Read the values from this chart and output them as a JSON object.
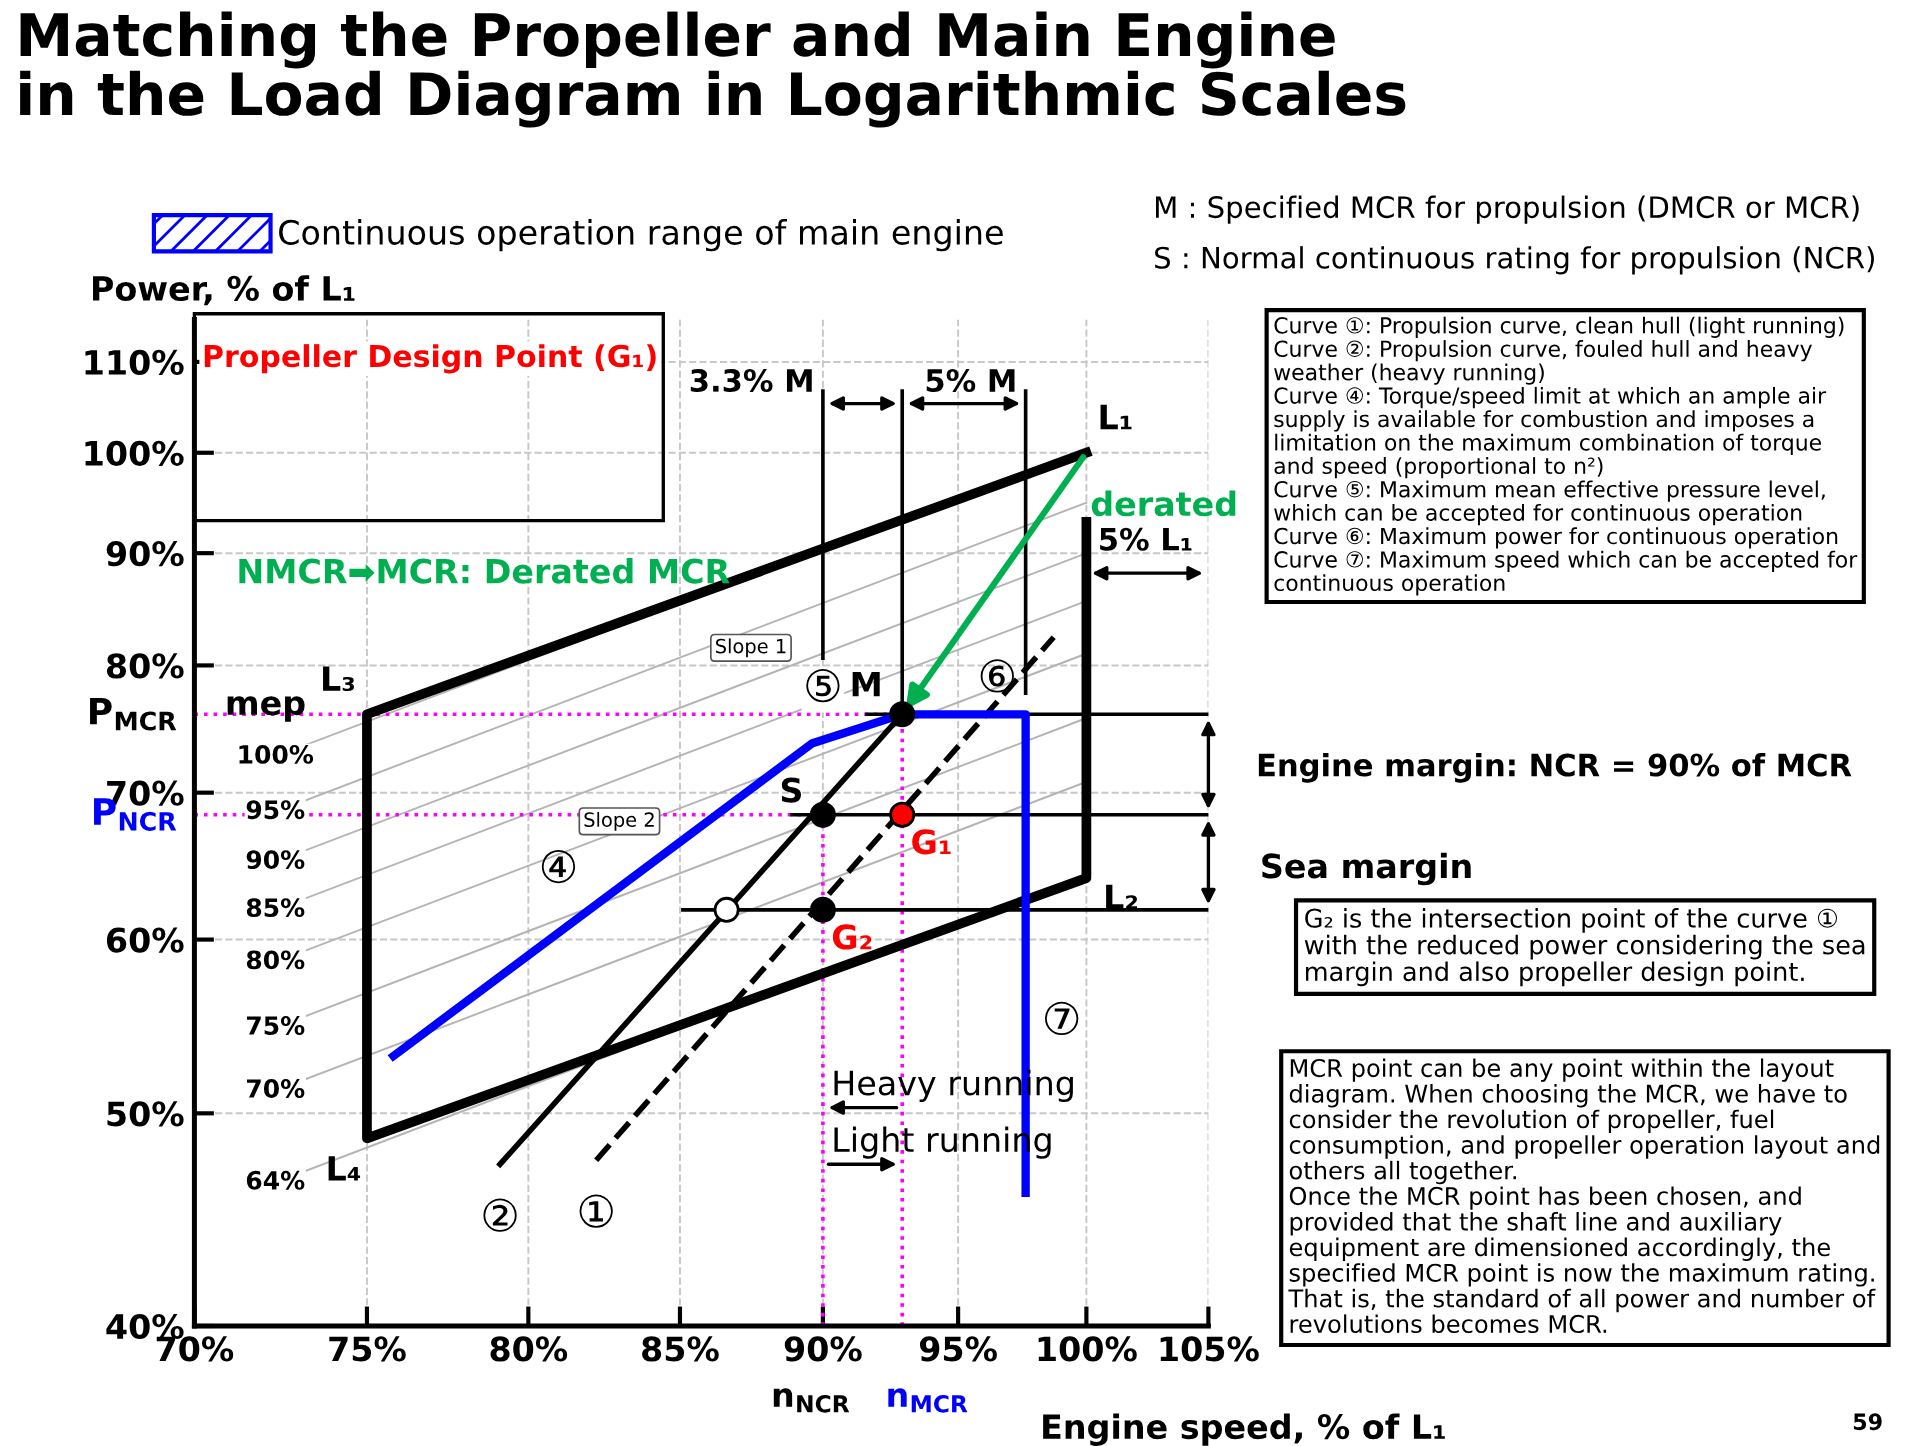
{
  "chart_data": {
    "type": "line",
    "title": "Matching the Propeller and Main Engine\nin the Load Diagram in Logarithmic Scales",
    "xlabel": "Engine speed, % of L₁",
    "ylabel": "Power, % of L₁",
    "log": "xy",
    "xlim": [
      70,
      105
    ],
    "ylim": [
      40,
      115
    ],
    "xticks": [
      {
        "value": 70,
        "label": "70%"
      },
      {
        "value": 75,
        "label": "75%"
      },
      {
        "value": 80,
        "label": "80%"
      },
      {
        "value": 85,
        "label": "85%"
      },
      {
        "value": 90,
        "label": "90%"
      },
      {
        "value": 95,
        "label": "95%"
      },
      {
        "value": 100,
        "label": "100%"
      },
      {
        "value": 105,
        "label": "105%"
      }
    ],
    "yticks": [
      {
        "value": 40,
        "label": "40%"
      },
      {
        "value": 50,
        "label": "50%"
      },
      {
        "value": 60,
        "label": "60%"
      },
      {
        "value": 70,
        "label": "70%"
      },
      {
        "value": 80,
        "label": "80%"
      },
      {
        "value": 90,
        "label": "90%"
      },
      {
        "value": 100,
        "label": "100%"
      },
      {
        "value": 110,
        "label": "110%"
      }
    ],
    "grid": true,
    "legend": "top left",
    "series": [
      {
        "type": "line",
        "color": "#000000",
        "line_style": "solid",
        "x": [
          100,
          75,
          75,
          100,
          100
        ],
        "values": [
          100,
          76,
          48.7,
          64,
          93
        ]
      },
      {
        "type": "line",
        "color": "#000000",
        "line_style": "solid",
        "x": [
          79.1,
          92.9
        ],
        "values": [
          47.4,
          76
        ]
      },
      {
        "type": "line",
        "color": "#000000",
        "line_style": "dashed",
        "x": [
          82.2,
          98.7
        ],
        "values": [
          47.6,
          82.4
        ]
      },
      {
        "type": "line",
        "name": "Continuous operation range of main engine",
        "color": "#0000ff",
        "line_style": "solid",
        "x": [
          75.8,
          89.6,
          92.9,
          97.6,
          97.6
        ],
        "values": [
          53.1,
          73.7,
          76,
          76,
          46
        ]
      },
      {
        "type": "line",
        "color": "#b4b4b4",
        "line_style": "solid",
        "x": [
          72.3,
          100
        ],
        "values": [
          72.7,
          100.5
        ]
      },
      {
        "type": "line",
        "color": "#b4b4b4",
        "line_style": "solid",
        "x": [
          72.3,
          100
        ],
        "values": [
          68.6,
          94.9
        ]
      },
      {
        "type": "line",
        "color": "#b4b4b4",
        "line_style": "solid",
        "x": [
          72.3,
          100
        ],
        "values": [
          65.1,
          90
        ]
      },
      {
        "type": "line",
        "color": "#b4b4b4",
        "line_style": "solid",
        "x": [
          72.3,
          100
        ],
        "values": [
          61.9,
          85.6
        ]
      },
      {
        "type": "line",
        "color": "#b4b4b4",
        "line_style": "solid",
        "x": [
          72.3,
          100
        ],
        "values": [
          58.6,
          81
        ]
      },
      {
        "type": "line",
        "color": "#b4b4b4",
        "line_style": "solid",
        "x": [
          72.3,
          100
        ],
        "values": [
          54.7,
          75.7
        ]
      },
      {
        "type": "line",
        "color": "#b4b4b4",
        "line_style": "solid",
        "x": [
          72.3,
          100
        ],
        "values": [
          51.2,
          70.8
        ]
      },
      {
        "type": "line",
        "color": "#b4b4b4",
        "line_style": "solid",
        "x": [
          72.3,
          100
        ],
        "values": [
          46.5,
          64.3
        ]
      },
      {
        "type": "line",
        "color": "#ff00ff",
        "line_style": "dotted",
        "x": [
          70,
          92.9
        ],
        "values": [
          76,
          76
        ]
      },
      {
        "type": "line",
        "color": "#ff00ff",
        "line_style": "dotted",
        "x": [
          70,
          90
        ],
        "values": [
          68.4,
          68.4
        ]
      },
      {
        "type": "line",
        "color": "#ff00ff",
        "line_style": "dotted",
        "x": [
          90,
          90
        ],
        "values": [
          40,
          68.4
        ]
      },
      {
        "type": "line",
        "color": "#ff00ff",
        "line_style": "dotted",
        "x": [
          92.9,
          92.9
        ],
        "values": [
          40,
          76
        ]
      },
      {
        "type": "line",
        "color": "#000000",
        "line_style": "solid",
        "x": [
          91.6,
          105
        ],
        "values": [
          76,
          76
        ]
      },
      {
        "type": "line",
        "color": "#000000",
        "line_style": "solid",
        "x": [
          88.9,
          105
        ],
        "values": [
          68.4,
          68.4
        ]
      },
      {
        "type": "line",
        "color": "#000000",
        "line_style": "solid",
        "x": [
          85.1,
          105
        ],
        "values": [
          61.9,
          61.9
        ]
      },
      {
        "type": "line",
        "color": "#000000",
        "line_style": "solid",
        "x": [
          90,
          90
        ],
        "values": [
          106.7,
          80.6
        ]
      },
      {
        "type": "line",
        "color": "#000000",
        "line_style": "solid",
        "x": [
          92.9,
          92.9
        ],
        "values": [
          106.7,
          76
        ]
      },
      {
        "type": "line",
        "color": "#000000",
        "line_style": "solid",
        "x": [
          97.6,
          97.6
        ],
        "values": [
          106.7,
          77.7
        ]
      },
      {
        "type": "scatter",
        "marker": "circle",
        "x": [
          92.9,
          90,
          92.9,
          90,
          86.6
        ],
        "values": [
          76,
          68.4,
          68.4,
          61.9,
          61.9
        ],
        "colors": [
          "#000000",
          "#000000",
          "#ff0000",
          "#000000",
          "#ffffff"
        ]
      }
    ],
    "annotations": [
      "Propeller Design Point (G₁)",
      "NMCR➡MCR: Derated MCR",
      "M : Specified MCR for propulsion (DMCR or MCR)",
      "S : Normal continuous rating for propulsion (NCR)",
      "Curve ①: Propulsion curve, clean hull (light running)\nCurve ②: Propulsion curve, fouled hull and heavy\nweather (heavy running)\nCurve ④: Torque/speed limit at which an ample air\nsupply is available for combustion and imposes a\nlimitation on the maximum combination of torque\nand speed (proportional to n²)\nCurve ⑤: Maximum mean effective pressure level,\nwhich can be accepted for continuous operation\nCurve ⑥: Maximum power for continuous operation\nCurve ⑦: Maximum speed which can be accepted for\ncontinuous operation",
      "G₂ is the intersection point of the curve ①\nwith the reduced power considering the sea\nmargin and also propeller design point.",
      "MCR point can be any point within the layout\ndiagram. When choosing the MCR, we have to\nconsider the revolution of propeller, fuel\nconsumption, and propeller operation layout and\nothers all together.\nOnce the MCR point has been chosen, and\nprovided that the shaft line and auxiliary\nequipment are dimensioned accordingly, the\nspecified MCR point is now the maximum rating.\nThat is, the standard of all power and number of\nrevolutions becomes MCR.",
      "Engine margin: NCR = 90% of MCR",
      "Sea margin",
      "59",
      "Slope 1",
      "Slope 2",
      "mep",
      {
        "text": "L₁",
        "x": 100,
        "y": 100
      },
      {
        "text": "L₂",
        "x": 100,
        "y": 64
      },
      {
        "text": "L₃",
        "x": 75,
        "y": 76
      },
      {
        "text": "L₄",
        "x": 75,
        "y": 48.7
      },
      {
        "text": "M",
        "x": 92.9,
        "y": 76
      },
      {
        "text": "S",
        "x": 90,
        "y": 68.4
      },
      {
        "text": "G₁",
        "x": 92.9,
        "y": 68.4
      },
      {
        "text": "G₂",
        "x": 90,
        "y": 61.9
      },
      {
        "text": "①",
        "x": 82.2,
        "y": 47.6
      },
      {
        "text": "②",
        "x": 79.1,
        "y": 47.4
      },
      "④",
      {
        "text": "⑤",
        "x": 90,
        "y": 78
      },
      {
        "text": "⑥",
        "x": 96.5,
        "y": 78.8
      },
      "⑦",
      {
        "text": "derated",
        "x": 100,
        "y": 94.5
      },
      {
        "text": "3.3% M",
        "x": 90,
        "y": 105.3
      },
      {
        "text": "5% M",
        "x": 97.6,
        "y": 105.3
      },
      "5% L₁",
      {
        "text": "Heavy running",
        "x": 90,
        "y": 50.3
      },
      {
        "text": "Light running",
        "x": 90,
        "y": 47.4
      },
      {
        "text": "P$_{MCR}$",
        "x": 70,
        "y": 76
      },
      {
        "text": "P$_{NCR}$",
        "x": 70,
        "y": 68.4
      },
      {
        "text": "n$_{NCR}$",
        "x": 90,
        "y": 40
      },
      {
        "text": "n$_{MCR}$",
        "x": 92.9,
        "y": 40
      },
      {
        "text": "100%",
        "x": 72.3,
        "y": 72.7
      },
      {
        "text": "95%",
        "x": 72.3,
        "y": 68.6
      },
      {
        "text": "90%",
        "x": 72.3,
        "y": 65.1
      },
      {
        "text": "85%",
        "x": 72.3,
        "y": 61.9
      },
      {
        "text": "80%",
        "x": 72.3,
        "y": 58.6
      },
      {
        "text": "75%",
        "x": 72.3,
        "y": 54.7
      },
      {
        "text": "70%",
        "x": 72.3,
        "y": 51.2
      },
      {
        "text": "64%",
        "x": 72.3,
        "y": 46.5
      }
    ]
  }
}
